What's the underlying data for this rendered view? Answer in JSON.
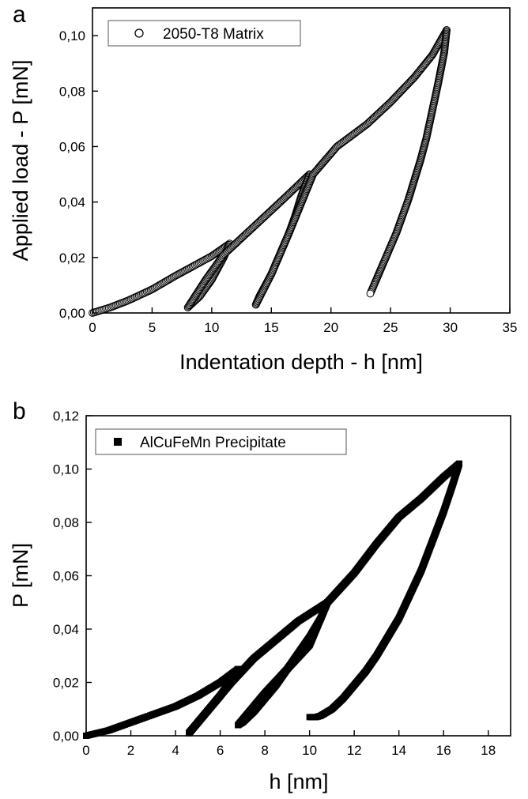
{
  "chart_data": [
    {
      "type": "scatter",
      "panel_label": "a",
      "xlabel": "Indentation depth - h [nm]",
      "ylabel": "Applied load - P [mN]",
      "xlim": [
        0,
        35
      ],
      "ylim": [
        0,
        0.11
      ],
      "xticks": [
        0,
        5,
        10,
        15,
        20,
        25,
        30,
        35
      ],
      "yticks": [
        0,
        0.02,
        0.04,
        0.06,
        0.08,
        0.1
      ],
      "xtick_labels": [
        "0",
        "5",
        "10",
        "15",
        "20",
        "25",
        "30",
        "35"
      ],
      "ytick_labels": [
        "0,00",
        "0,02",
        "0,04",
        "0,06",
        "0,08",
        "0,10"
      ],
      "grid": false,
      "legend_position": "top-left",
      "marker": "open-circle",
      "series": [
        {
          "name": "2050-T8 Matrix",
          "segments": [
            {
              "x": [
                0,
                1.5,
                3,
                5,
                7,
                8.5,
                10,
                11.5
              ],
              "y": [
                0,
                0.002,
                0.0045,
                0.0085,
                0.0135,
                0.017,
                0.0205,
                0.025
              ]
            },
            {
              "x": [
                11.5,
                11,
                10.5,
                10,
                9.5,
                9,
                8.5,
                8
              ],
              "y": [
                0.025,
                0.02,
                0.016,
                0.012,
                0.009,
                0.006,
                0.004,
                0.002
              ]
            },
            {
              "x": [
                8,
                9.5,
                11,
                12.5,
                14,
                16,
                18.2
              ],
              "y": [
                0.002,
                0.012,
                0.021,
                0.027,
                0.033,
                0.041,
                0.05
              ]
            },
            {
              "x": [
                18.2,
                17.5,
                17,
                16.5,
                16,
                15.5,
                15,
                14.5,
                14,
                13.7
              ],
              "y": [
                0.05,
                0.042,
                0.035,
                0.029,
                0.024,
                0.019,
                0.014,
                0.01,
                0.006,
                0.003
              ]
            },
            {
              "x": [
                13.7,
                15,
                16.5,
                18.5,
                20.5,
                23,
                25,
                27,
                28.5,
                29.7
              ],
              "y": [
                0.003,
                0.014,
                0.029,
                0.05,
                0.06,
                0.068,
                0.076,
                0.085,
                0.093,
                0.102
              ]
            },
            {
              "x": [
                29.7,
                29.5,
                29,
                28.5,
                28,
                27.5,
                27,
                26.5,
                26,
                25.5,
                25,
                24.5,
                24,
                23.6,
                23.3
              ],
              "y": [
                0.102,
                0.094,
                0.083,
                0.073,
                0.063,
                0.055,
                0.048,
                0.041,
                0.035,
                0.029,
                0.024,
                0.019,
                0.014,
                0.01,
                0.007
              ]
            }
          ]
        }
      ]
    },
    {
      "type": "scatter",
      "panel_label": "b",
      "xlabel": "h [nm]",
      "ylabel": "P [mN]",
      "xlim": [
        0,
        19
      ],
      "ylim": [
        0,
        0.12
      ],
      "xticks": [
        0,
        2,
        4,
        6,
        8,
        10,
        12,
        14,
        16,
        18
      ],
      "yticks": [
        0,
        0.02,
        0.04,
        0.06,
        0.08,
        0.1,
        0.12
      ],
      "xtick_labels": [
        "0",
        "2",
        "4",
        "6",
        "8",
        "10",
        "12",
        "14",
        "16",
        "18"
      ],
      "ytick_labels": [
        "0,00",
        "0,02",
        "0,04",
        "0,06",
        "0,08",
        "0,10",
        "0,12"
      ],
      "grid": false,
      "legend_position": "top-left",
      "marker": "filled-square",
      "series": [
        {
          "name": "AlCuFeMn Precipitate",
          "segments": [
            {
              "x": [
                0,
                1,
                2,
                3,
                4,
                5,
                6,
                6.8
              ],
              "y": [
                0,
                0.002,
                0.005,
                0.008,
                0.011,
                0.015,
                0.02,
                0.025
              ]
            },
            {
              "x": [
                6.8,
                6.5,
                6,
                5.5,
                5,
                4.6
              ],
              "y": [
                0.025,
                0.021,
                0.015,
                0.01,
                0.005,
                0.001
              ]
            },
            {
              "x": [
                4.6,
                5.5,
                6.5,
                7.5,
                8.5,
                9.5,
                10.8
              ],
              "y": [
                0.001,
                0.01,
                0.02,
                0.029,
                0.036,
                0.043,
                0.05
              ]
            },
            {
              "x": [
                10.8,
                10.5,
                10,
                9.5,
                9,
                8.5,
                8,
                7.5,
                7,
                6.8
              ],
              "y": [
                0.05,
                0.044,
                0.037,
                0.031,
                0.025,
                0.019,
                0.014,
                0.009,
                0.005,
                0.004
              ]
            },
            {
              "x": [
                6.8,
                8,
                9,
                10,
                10.8,
                12,
                13,
                14,
                15,
                16,
                16.7
              ],
              "y": [
                0.004,
                0.016,
                0.025,
                0.034,
                0.05,
                0.061,
                0.072,
                0.082,
                0.089,
                0.097,
                0.102
              ]
            },
            {
              "x": [
                16.7,
                16.4,
                16,
                15.5,
                15,
                14.5,
                14,
                13.5,
                13,
                12.5,
                12,
                11.5,
                11,
                10.5,
                10.3,
                10
              ],
              "y": [
                0.102,
                0.094,
                0.084,
                0.073,
                0.062,
                0.053,
                0.044,
                0.037,
                0.03,
                0.024,
                0.019,
                0.014,
                0.01,
                0.0075,
                0.007,
                0.007
              ]
            }
          ]
        }
      ]
    }
  ]
}
